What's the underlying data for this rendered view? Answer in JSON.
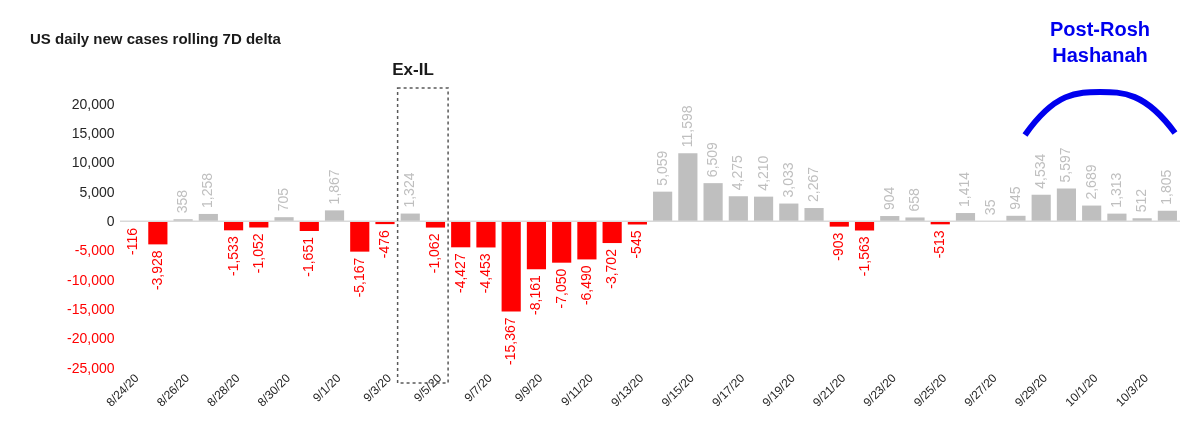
{
  "chart_data": {
    "type": "bar",
    "title": "US daily new cases rolling 7D delta",
    "categories": [
      "8/24/20",
      null,
      "8/26/20",
      null,
      "8/28/20",
      null,
      "8/30/20",
      null,
      "9/1/20",
      null,
      "9/3/20",
      null,
      "9/5/20",
      null,
      "9/7/20",
      null,
      "9/9/20",
      null,
      "9/11/20",
      null,
      "9/13/20",
      null,
      "9/15/20",
      null,
      "9/17/20",
      null,
      "9/19/20",
      null,
      "9/21/20",
      null,
      "9/23/20",
      null,
      "9/25/20",
      null,
      "9/27/20",
      null,
      "9/29/20",
      null,
      "10/1/20",
      null,
      "10/3/20",
      null
    ],
    "values": [
      -116,
      -3928,
      358,
      1258,
      -1533,
      -1052,
      705,
      -1651,
      1867,
      -5167,
      -476,
      1324,
      -1062,
      -4427,
      -4453,
      -15367,
      -8161,
      -7050,
      -6490,
      -3702,
      -545,
      5059,
      11598,
      6509,
      4275,
      4210,
      3033,
      2267,
      -903,
      -1563,
      904,
      658,
      -513,
      1414,
      35,
      945,
      4534,
      5597,
      2689,
      1313,
      512,
      1805
    ],
    "colors": [
      "#ff0000",
      "#ff0000",
      "#bfbfbf",
      "#bfbfbf",
      "#ff0000",
      "#ff0000",
      "#bfbfbf",
      "#ff0000",
      "#bfbfbf",
      "#ff0000",
      "#ff0000",
      "#bfbfbf",
      "#ff0000",
      "#ff0000",
      "#ff0000",
      "#ff0000",
      "#ff0000",
      "#ff0000",
      "#ff0000",
      "#ff0000",
      "#ff0000",
      "#bfbfbf",
      "#bfbfbf",
      "#bfbfbf",
      "#bfbfbf",
      "#bfbfbf",
      "#bfbfbf",
      "#bfbfbf",
      "#ff0000",
      "#ff0000",
      "#bfbfbf",
      "#bfbfbf",
      "#ff0000",
      "#bfbfbf",
      "#bfbfbf",
      "#bfbfbf",
      "#bfbfbf",
      "#bfbfbf",
      "#bfbfbf",
      "#bfbfbf",
      "#bfbfbf",
      "#bfbfbf"
    ],
    "ylim": [
      -25000,
      20000
    ],
    "yticks": [
      {
        "value": -25000,
        "label": "-25,000"
      },
      {
        "value": -20000,
        "label": "-20,000"
      },
      {
        "value": -15000,
        "label": "-15,000"
      },
      {
        "value": -10000,
        "label": "-10,000"
      },
      {
        "value": -5000,
        "label": "-5,000"
      },
      0,
      {
        "value": 5000,
        "label": "5,000"
      },
      {
        "value": 10000,
        "label": "10,000"
      },
      {
        "value": 15000,
        "label": "15,000"
      },
      {
        "value": 20000,
        "label": "20,000"
      }
    ],
    "value_labels": [
      "-116",
      "-3,928",
      "358",
      "1,258",
      "-1,533",
      "-1,052",
      "705",
      "-1,651",
      "1,867",
      "-5,167",
      "-476",
      "1,324",
      "-1,062",
      "-4,427",
      "-4,453",
      "-15,367",
      "-8,161",
      "-7,050",
      "-6,490",
      "-3,702",
      "-545",
      "5,059",
      "11,598",
      "6,509",
      "4,275",
      "4,210",
      "3,033",
      "2,267",
      "-903",
      "-1,563",
      "904",
      "658",
      "-513",
      "1,414",
      "35",
      "945",
      "4,534",
      "5,597",
      "2,689",
      "1,313",
      "512",
      "1,805"
    ],
    "annotations": [
      "Ex-IL",
      "Post-Rosh\nHashanah"
    ]
  }
}
